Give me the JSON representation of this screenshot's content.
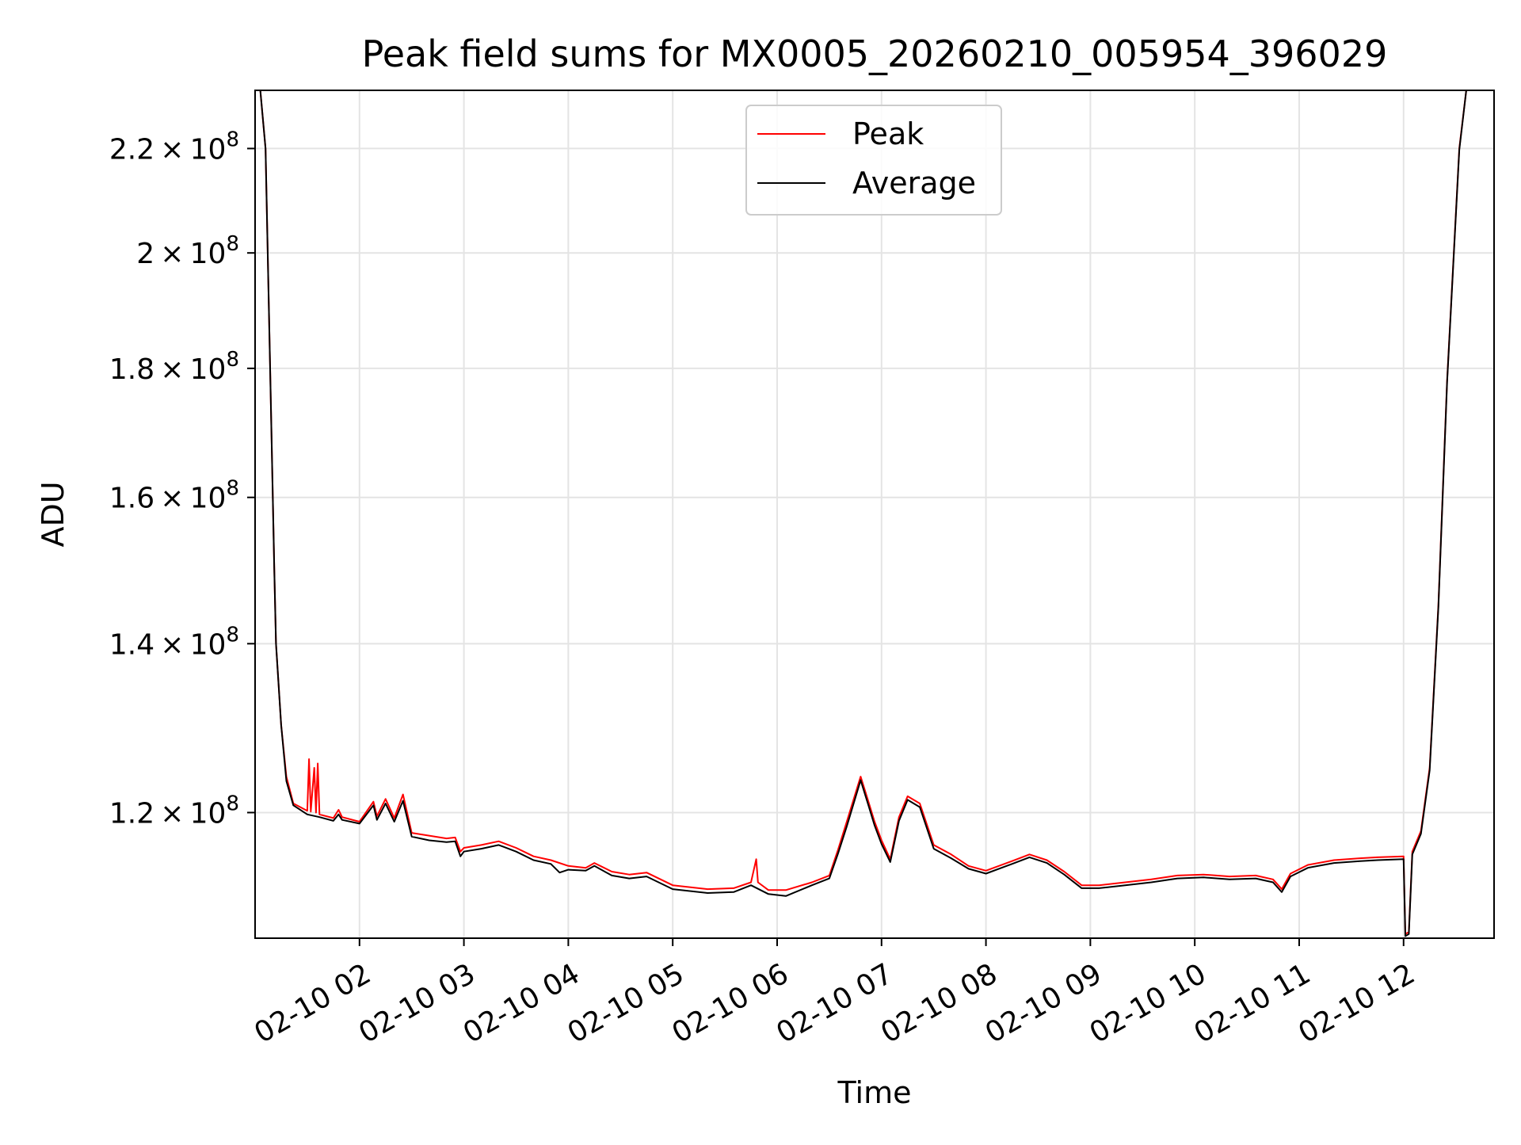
{
  "chart_data": {
    "type": "line",
    "title": "Peak field sums for MX0005_20260210_005954_396029",
    "xlabel": "Time",
    "ylabel": "ADU",
    "y_scale": "log",
    "ylim": [
      107000000,
      232000000
    ],
    "grid": true,
    "legend_placement": "top-center",
    "x_axis_type": "time",
    "xlim": [
      "2026-02-10 01:00",
      "2026-02-10 12:52"
    ],
    "x_ticks": [
      {
        "value": "2026-02-10 02:00",
        "label": "02-10 02"
      },
      {
        "value": "2026-02-10 03:00",
        "label": "02-10 03"
      },
      {
        "value": "2026-02-10 04:00",
        "label": "02-10 04"
      },
      {
        "value": "2026-02-10 05:00",
        "label": "02-10 05"
      },
      {
        "value": "2026-02-10 06:00",
        "label": "02-10 06"
      },
      {
        "value": "2026-02-10 07:00",
        "label": "02-10 07"
      },
      {
        "value": "2026-02-10 08:00",
        "label": "02-10 08"
      },
      {
        "value": "2026-02-10 09:00",
        "label": "02-10 09"
      },
      {
        "value": "2026-02-10 10:00",
        "label": "02-10 10"
      },
      {
        "value": "2026-02-10 11:00",
        "label": "02-10 11"
      },
      {
        "value": "2026-02-10 12:00",
        "label": "02-10 12"
      }
    ],
    "y_ticks": [
      {
        "value": 120000000,
        "mantissa": "1.2",
        "exponent": "8"
      },
      {
        "value": 140000000,
        "mantissa": "1.4",
        "exponent": "8"
      },
      {
        "value": 160000000,
        "mantissa": "1.6",
        "exponent": "8"
      },
      {
        "value": 180000000,
        "mantissa": "1.8",
        "exponent": "8"
      },
      {
        "value": 200000000,
        "mantissa": "2",
        "exponent": "8"
      },
      {
        "value": 220000000,
        "mantissa": "2.2",
        "exponent": "8"
      }
    ],
    "series": [
      {
        "name": "Peak",
        "color": "#ff0000",
        "points": [
          [
            "2026-02-10 01:00",
            232000000
          ],
          [
            "2026-02-10 01:03",
            232000000
          ],
          [
            "2026-02-10 01:06",
            220000000
          ],
          [
            "2026-02-10 01:09",
            175000000
          ],
          [
            "2026-02-10 01:11",
            150000000
          ],
          [
            "2026-02-10 01:12",
            140000000
          ],
          [
            "2026-02-10 01:15",
            130000000
          ],
          [
            "2026-02-10 01:18",
            124000000
          ],
          [
            "2026-02-10 01:22",
            121000000
          ],
          [
            "2026-02-10 01:30",
            120200000
          ],
          [
            "2026-02-10 01:31",
            126000000
          ],
          [
            "2026-02-10 01:32",
            120100000
          ],
          [
            "2026-02-10 01:34",
            125000000
          ],
          [
            "2026-02-10 01:35",
            120000000
          ],
          [
            "2026-02-10 01:36",
            125500000
          ],
          [
            "2026-02-10 01:37",
            119800000
          ],
          [
            "2026-02-10 01:45",
            119400000
          ],
          [
            "2026-02-10 01:48",
            120300000
          ],
          [
            "2026-02-10 01:50",
            119500000
          ],
          [
            "2026-02-10 02:00",
            119000000
          ],
          [
            "2026-02-10 02:08",
            121200000
          ],
          [
            "2026-02-10 02:10",
            119600000
          ],
          [
            "2026-02-10 02:15",
            121500000
          ],
          [
            "2026-02-10 02:20",
            119400000
          ],
          [
            "2026-02-10 02:25",
            122000000
          ],
          [
            "2026-02-10 02:30",
            117800000
          ],
          [
            "2026-02-10 02:40",
            117500000
          ],
          [
            "2026-02-10 02:50",
            117200000
          ],
          [
            "2026-02-10 02:55",
            117300000
          ],
          [
            "2026-02-10 02:58",
            115800000
          ],
          [
            "2026-02-10 03:00",
            116200000
          ],
          [
            "2026-02-10 03:10",
            116500000
          ],
          [
            "2026-02-10 03:20",
            116900000
          ],
          [
            "2026-02-10 03:30",
            116200000
          ],
          [
            "2026-02-10 03:40",
            115300000
          ],
          [
            "2026-02-10 03:50",
            114900000
          ],
          [
            "2026-02-10 04:00",
            114300000
          ],
          [
            "2026-02-10 04:10",
            114100000
          ],
          [
            "2026-02-10 04:15",
            114600000
          ],
          [
            "2026-02-10 04:25",
            113700000
          ],
          [
            "2026-02-10 04:35",
            113400000
          ],
          [
            "2026-02-10 04:45",
            113600000
          ],
          [
            "2026-02-10 05:00",
            112300000
          ],
          [
            "2026-02-10 05:20",
            111900000
          ],
          [
            "2026-02-10 05:35",
            112000000
          ],
          [
            "2026-02-10 05:45",
            112600000
          ],
          [
            "2026-02-10 05:48",
            115000000
          ],
          [
            "2026-02-10 05:49",
            112600000
          ],
          [
            "2026-02-10 05:55",
            111800000
          ],
          [
            "2026-02-10 06:05",
            111800000
          ],
          [
            "2026-02-10 06:20",
            112600000
          ],
          [
            "2026-02-10 06:30",
            113300000
          ],
          [
            "2026-02-10 06:35",
            116000000
          ],
          [
            "2026-02-10 06:40",
            119000000
          ],
          [
            "2026-02-10 06:48",
            124000000
          ],
          [
            "2026-02-10 06:52",
            121500000
          ],
          [
            "2026-02-10 06:56",
            119000000
          ],
          [
            "2026-02-10 07:00",
            117000000
          ],
          [
            "2026-02-10 07:05",
            115000000
          ],
          [
            "2026-02-10 07:10",
            119500000
          ],
          [
            "2026-02-10 07:15",
            121800000
          ],
          [
            "2026-02-10 07:22",
            121000000
          ],
          [
            "2026-02-10 07:30",
            116500000
          ],
          [
            "2026-02-10 07:40",
            115500000
          ],
          [
            "2026-02-10 07:50",
            114300000
          ],
          [
            "2026-02-10 08:00",
            113800000
          ],
          [
            "2026-02-10 08:15",
            114800000
          ],
          [
            "2026-02-10 08:25",
            115500000
          ],
          [
            "2026-02-10 08:35",
            114900000
          ],
          [
            "2026-02-10 08:45",
            113700000
          ],
          [
            "2026-02-10 08:55",
            112300000
          ],
          [
            "2026-02-10 09:05",
            112300000
          ],
          [
            "2026-02-10 09:20",
            112600000
          ],
          [
            "2026-02-10 09:35",
            112900000
          ],
          [
            "2026-02-10 09:50",
            113300000
          ],
          [
            "2026-02-10 10:05",
            113400000
          ],
          [
            "2026-02-10 10:20",
            113200000
          ],
          [
            "2026-02-10 10:35",
            113300000
          ],
          [
            "2026-02-10 10:45",
            112900000
          ],
          [
            "2026-02-10 10:50",
            111900000
          ],
          [
            "2026-02-10 10:55",
            113500000
          ],
          [
            "2026-02-10 11:05",
            114400000
          ],
          [
            "2026-02-10 11:20",
            114900000
          ],
          [
            "2026-02-10 11:35",
            115100000
          ],
          [
            "2026-02-10 11:45",
            115200000
          ],
          [
            "2026-02-10 12:00",
            115300000
          ],
          [
            "2026-02-10 12:01",
            107400000
          ],
          [
            "2026-02-10 12:03",
            107600000
          ],
          [
            "2026-02-10 12:05",
            115800000
          ],
          [
            "2026-02-10 12:10",
            118000000
          ],
          [
            "2026-02-10 12:15",
            125000000
          ],
          [
            "2026-02-10 12:20",
            145000000
          ],
          [
            "2026-02-10 12:25",
            178000000
          ],
          [
            "2026-02-10 12:32",
            220000000
          ],
          [
            "2026-02-10 12:36",
            232000000
          ],
          [
            "2026-02-10 12:52",
            232000000
          ]
        ]
      },
      {
        "name": "Average",
        "color": "#000000",
        "points": [
          [
            "2026-02-10 01:00",
            232000000
          ],
          [
            "2026-02-10 01:03",
            232000000
          ],
          [
            "2026-02-10 01:06",
            220000000
          ],
          [
            "2026-02-10 01:09",
            175000000
          ],
          [
            "2026-02-10 01:11",
            150000000
          ],
          [
            "2026-02-10 01:12",
            140000000
          ],
          [
            "2026-02-10 01:15",
            130000000
          ],
          [
            "2026-02-10 01:18",
            123500000
          ],
          [
            "2026-02-10 01:22",
            120800000
          ],
          [
            "2026-02-10 01:30",
            119800000
          ],
          [
            "2026-02-10 01:37",
            119500000
          ],
          [
            "2026-02-10 01:45",
            119100000
          ],
          [
            "2026-02-10 01:48",
            119800000
          ],
          [
            "2026-02-10 01:50",
            119200000
          ],
          [
            "2026-02-10 02:00",
            118800000
          ],
          [
            "2026-02-10 02:08",
            120800000
          ],
          [
            "2026-02-10 02:10",
            119200000
          ],
          [
            "2026-02-10 02:15",
            121000000
          ],
          [
            "2026-02-10 02:20",
            119000000
          ],
          [
            "2026-02-10 02:25",
            121300000
          ],
          [
            "2026-02-10 02:30",
            117400000
          ],
          [
            "2026-02-10 02:40",
            117000000
          ],
          [
            "2026-02-10 02:50",
            116800000
          ],
          [
            "2026-02-10 02:55",
            116900000
          ],
          [
            "2026-02-10 02:58",
            115300000
          ],
          [
            "2026-02-10 03:00",
            115800000
          ],
          [
            "2026-02-10 03:10",
            116100000
          ],
          [
            "2026-02-10 03:20",
            116500000
          ],
          [
            "2026-02-10 03:30",
            115800000
          ],
          [
            "2026-02-10 03:40",
            114900000
          ],
          [
            "2026-02-10 03:50",
            114500000
          ],
          [
            "2026-02-10 03:55",
            113600000
          ],
          [
            "2026-02-10 04:00",
            113900000
          ],
          [
            "2026-02-10 04:10",
            113800000
          ],
          [
            "2026-02-10 04:15",
            114300000
          ],
          [
            "2026-02-10 04:25",
            113300000
          ],
          [
            "2026-02-10 04:35",
            113000000
          ],
          [
            "2026-02-10 04:45",
            113200000
          ],
          [
            "2026-02-10 05:00",
            111900000
          ],
          [
            "2026-02-10 05:20",
            111500000
          ],
          [
            "2026-02-10 05:35",
            111600000
          ],
          [
            "2026-02-10 05:45",
            112300000
          ],
          [
            "2026-02-10 05:55",
            111400000
          ],
          [
            "2026-02-10 06:05",
            111200000
          ],
          [
            "2026-02-10 06:20",
            112300000
          ],
          [
            "2026-02-10 06:30",
            113000000
          ],
          [
            "2026-02-10 06:35",
            115600000
          ],
          [
            "2026-02-10 06:40",
            118500000
          ],
          [
            "2026-02-10 06:48",
            123600000
          ],
          [
            "2026-02-10 06:52",
            121100000
          ],
          [
            "2026-02-10 06:56",
            118600000
          ],
          [
            "2026-02-10 07:00",
            116600000
          ],
          [
            "2026-02-10 07:05",
            114700000
          ],
          [
            "2026-02-10 07:10",
            119100000
          ],
          [
            "2026-02-10 07:15",
            121400000
          ],
          [
            "2026-02-10 07:22",
            120600000
          ],
          [
            "2026-02-10 07:30",
            116100000
          ],
          [
            "2026-02-10 07:40",
            115100000
          ],
          [
            "2026-02-10 07:50",
            114000000
          ],
          [
            "2026-02-10 08:00",
            113500000
          ],
          [
            "2026-02-10 08:15",
            114500000
          ],
          [
            "2026-02-10 08:25",
            115200000
          ],
          [
            "2026-02-10 08:35",
            114600000
          ],
          [
            "2026-02-10 08:45",
            113400000
          ],
          [
            "2026-02-10 08:55",
            112000000
          ],
          [
            "2026-02-10 09:05",
            112000000
          ],
          [
            "2026-02-10 09:20",
            112300000
          ],
          [
            "2026-02-10 09:35",
            112600000
          ],
          [
            "2026-02-10 09:50",
            113000000
          ],
          [
            "2026-02-10 10:05",
            113100000
          ],
          [
            "2026-02-10 10:20",
            112900000
          ],
          [
            "2026-02-10 10:35",
            113000000
          ],
          [
            "2026-02-10 10:45",
            112600000
          ],
          [
            "2026-02-10 10:50",
            111600000
          ],
          [
            "2026-02-10 10:55",
            113200000
          ],
          [
            "2026-02-10 11:05",
            114100000
          ],
          [
            "2026-02-10 11:20",
            114600000
          ],
          [
            "2026-02-10 11:35",
            114800000
          ],
          [
            "2026-02-10 11:45",
            114900000
          ],
          [
            "2026-02-10 12:00",
            115000000
          ],
          [
            "2026-02-10 12:01",
            107200000
          ],
          [
            "2026-02-10 12:03",
            107400000
          ],
          [
            "2026-02-10 12:05",
            115500000
          ],
          [
            "2026-02-10 12:10",
            117700000
          ],
          [
            "2026-02-10 12:15",
            124700000
          ],
          [
            "2026-02-10 12:20",
            144700000
          ],
          [
            "2026-02-10 12:25",
            177700000
          ],
          [
            "2026-02-10 12:32",
            219700000
          ],
          [
            "2026-02-10 12:36",
            232000000
          ],
          [
            "2026-02-10 12:52",
            232000000
          ]
        ]
      }
    ]
  }
}
